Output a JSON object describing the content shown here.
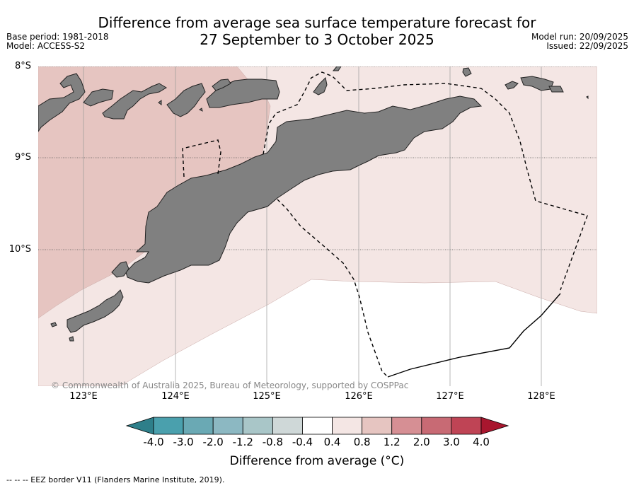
{
  "title": {
    "line1": "Difference from average sea surface temperature forecast for",
    "line2": "27 September to 3 October 2025"
  },
  "meta": {
    "base_period": "Base period: 1981-2018",
    "model": "Model: ACCESS-S2",
    "model_run": "Model run: 20/09/2025",
    "issued": "Issued: 22/09/2025"
  },
  "map": {
    "lat_labels": [
      "8°S",
      "9°S",
      "10°S"
    ],
    "lon_labels": [
      "123°E",
      "124°E",
      "125°E",
      "126°E",
      "127°E",
      "128°E"
    ],
    "copyright": "© Commonwealth of Australia 2025, Bureau of Meteorology, supported by COSPPac",
    "colors": {
      "land": "#808080",
      "anom_0_4_to_0_8": "#f4e6e4",
      "anom_0_8_to_1_2": "#e6c5c1",
      "ocean_neutral": "#ffffff"
    }
  },
  "colorbar": {
    "ticks": [
      "-4.0",
      "-3.0",
      "-2.0",
      "-1.2",
      "-0.8",
      "-0.4",
      "0.4",
      "0.8",
      "1.2",
      "2.0",
      "3.0",
      "4.0"
    ],
    "colors": [
      "#2e7f8a",
      "#4aa0ad",
      "#6aa9b4",
      "#8cb8c2",
      "#a9c6c8",
      "#cfd8d8",
      "#ffffff",
      "#f4e6e4",
      "#e6c5c1",
      "#d68f94",
      "#c86a74",
      "#bf4455",
      "#a8162e"
    ],
    "label": "Difference from average (°C)"
  },
  "footnote": "--  --  -- EEZ border V11 (Flanders Marine Institute, 2019)."
}
